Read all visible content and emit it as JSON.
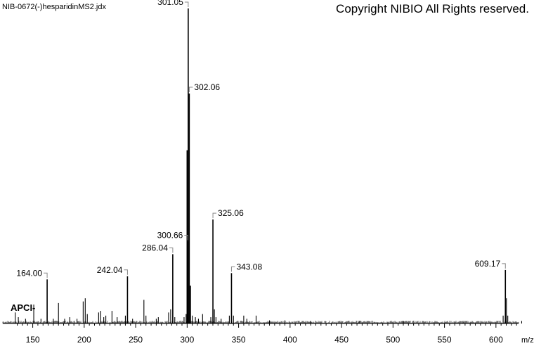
{
  "header": {
    "filename": "NIB-0672(-)hesparidinMS2.jdx",
    "copyright": "Copyright NIBIO All Rights reserved."
  },
  "chart_data": {
    "type": "bar",
    "subtype": "mass-spectrum",
    "ion_mode": "APCI-",
    "xlabel": "m/z",
    "ylabel": "",
    "xlim": [
      132,
      633
    ],
    "ylim": [
      0,
      100
    ],
    "xticks": [
      150,
      200,
      250,
      300,
      350,
      400,
      450,
      500,
      550,
      600
    ],
    "grid": false,
    "colors": {
      "axis": "#000000",
      "peaks": "#000000",
      "background": "#ffffff"
    },
    "labeled_peaks": [
      {
        "mz": 164.0,
        "label": "164.00",
        "intensity": 14
      },
      {
        "mz": 242.04,
        "label": "242.04",
        "intensity": 15
      },
      {
        "mz": 286.04,
        "label": "286.04",
        "intensity": 22
      },
      {
        "mz": 300.66,
        "label": "300.66",
        "intensity": 26
      },
      {
        "mz": 301.05,
        "label": "301.05",
        "intensity": 100
      },
      {
        "mz": 302.06,
        "label": "302.06",
        "intensity": 73
      },
      {
        "mz": 325.06,
        "label": "325.06",
        "intensity": 33
      },
      {
        "mz": 343.08,
        "label": "343.08",
        "intensity": 16
      },
      {
        "mz": 609.17,
        "label": "609.17",
        "intensity": 17
      }
    ],
    "peaks": [
      {
        "mz": 133,
        "intensity": 3.5
      },
      {
        "mz": 136,
        "intensity": 2
      },
      {
        "mz": 143,
        "intensity": 1.5
      },
      {
        "mz": 151,
        "intensity": 6
      },
      {
        "mz": 158,
        "intensity": 1.5
      },
      {
        "mz": 164.0,
        "intensity": 14
      },
      {
        "mz": 170,
        "intensity": 1.5
      },
      {
        "mz": 175,
        "intensity": 6.5
      },
      {
        "mz": 181,
        "intensity": 1.5
      },
      {
        "mz": 186,
        "intensity": 2
      },
      {
        "mz": 193,
        "intensity": 1.5
      },
      {
        "mz": 199,
        "intensity": 7
      },
      {
        "mz": 201,
        "intensity": 8
      },
      {
        "mz": 203,
        "intensity": 3
      },
      {
        "mz": 214,
        "intensity": 3.5
      },
      {
        "mz": 216,
        "intensity": 4
      },
      {
        "mz": 219,
        "intensity": 2
      },
      {
        "mz": 221,
        "intensity": 2.5
      },
      {
        "mz": 227,
        "intensity": 4
      },
      {
        "mz": 232,
        "intensity": 2
      },
      {
        "mz": 240,
        "intensity": 2.5
      },
      {
        "mz": 242.04,
        "intensity": 15
      },
      {
        "mz": 247,
        "intensity": 1.5
      },
      {
        "mz": 258,
        "intensity": 7.5
      },
      {
        "mz": 260,
        "intensity": 2.5
      },
      {
        "mz": 270,
        "intensity": 1.5
      },
      {
        "mz": 272,
        "intensity": 2
      },
      {
        "mz": 282,
        "intensity": 3.5
      },
      {
        "mz": 284,
        "intensity": 4.5
      },
      {
        "mz": 286.04,
        "intensity": 22
      },
      {
        "mz": 288,
        "intensity": 2
      },
      {
        "mz": 297,
        "intensity": 2
      },
      {
        "mz": 299,
        "intensity": 3
      },
      {
        "mz": 300.0,
        "intensity": 55
      },
      {
        "mz": 300.66,
        "intensity": 26
      },
      {
        "mz": 301.05,
        "intensity": 100
      },
      {
        "mz": 302.06,
        "intensity": 73
      },
      {
        "mz": 303.2,
        "intensity": 12
      },
      {
        "mz": 305,
        "intensity": 2.5
      },
      {
        "mz": 308,
        "intensity": 2
      },
      {
        "mz": 311,
        "intensity": 1.5
      },
      {
        "mz": 315,
        "intensity": 3
      },
      {
        "mz": 323,
        "intensity": 2
      },
      {
        "mz": 325.06,
        "intensity": 33
      },
      {
        "mz": 326.5,
        "intensity": 4.5
      },
      {
        "mz": 328,
        "intensity": 2
      },
      {
        "mz": 333,
        "intensity": 1.5
      },
      {
        "mz": 341,
        "intensity": 2.5
      },
      {
        "mz": 343.08,
        "intensity": 16
      },
      {
        "mz": 345,
        "intensity": 2.5
      },
      {
        "mz": 355,
        "intensity": 2.5
      },
      {
        "mz": 358,
        "intensity": 1.5
      },
      {
        "mz": 367,
        "intensity": 2.5
      },
      {
        "mz": 380,
        "intensity": 1
      },
      {
        "mz": 395,
        "intensity": 1
      },
      {
        "mz": 420,
        "intensity": 0.8
      },
      {
        "mz": 467,
        "intensity": 0.8
      },
      {
        "mz": 510,
        "intensity": 0.8
      },
      {
        "mz": 568,
        "intensity": 0.8
      },
      {
        "mz": 607,
        "intensity": 2.5
      },
      {
        "mz": 609.17,
        "intensity": 17
      },
      {
        "mz": 610.2,
        "intensity": 8
      },
      {
        "mz": 611.5,
        "intensity": 2.5
      },
      {
        "mz": 625,
        "intensity": 0.8
      }
    ]
  }
}
